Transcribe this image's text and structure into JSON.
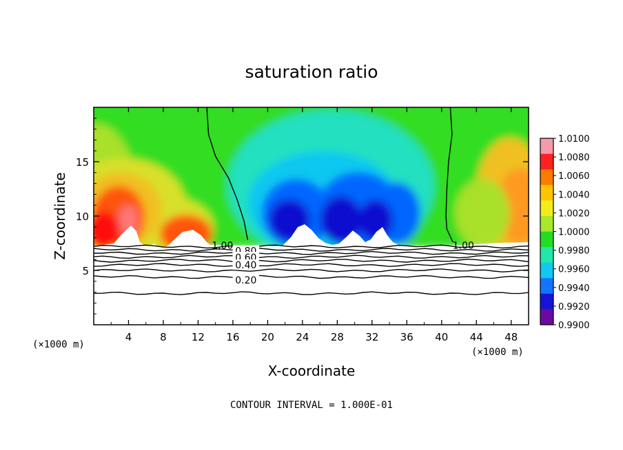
{
  "chart_data": {
    "type": "heatmap",
    "title": "saturation ratio",
    "xlabel": "X-coordinate",
    "ylabel": "Z-coordinate",
    "x_unit_left": "(×1000 m)",
    "x_unit_right": "(×1000 m)",
    "xlim": [
      0,
      50
    ],
    "ylim": [
      0,
      20
    ],
    "x_ticks": [
      "4",
      "8",
      "12",
      "16",
      "20",
      "24",
      "28",
      "32",
      "36",
      "40",
      "44",
      "48"
    ],
    "x_tick_values": [
      4,
      8,
      12,
      16,
      20,
      24,
      28,
      32,
      36,
      40,
      44,
      48
    ],
    "y_ticks": [
      "5",
      "10",
      "15"
    ],
    "y_tick_values": [
      5,
      10,
      15
    ],
    "colorbar": {
      "labels": [
        "1.0100",
        "1.0080",
        "1.0060",
        "1.0040",
        "1.0020",
        "1.0000",
        "0.9980",
        "0.9960",
        "0.9940",
        "0.9920",
        "0.9900"
      ],
      "min": 0.99,
      "max": 1.01
    },
    "contour_interval_text": "CONTOUR INTERVAL = 1.000E-01",
    "contour_labels": [
      {
        "text": "1.00",
        "x": 14.8,
        "z": 7.3
      },
      {
        "text": "0.80",
        "x": 17.5,
        "z": 6.8
      },
      {
        "text": "0.60",
        "x": 17.5,
        "z": 6.2
      },
      {
        "text": "0.40",
        "x": 17.5,
        "z": 5.5
      },
      {
        "text": "0.20",
        "x": 17.5,
        "z": 4.1
      },
      {
        "text": "1.00",
        "x": 42.5,
        "z": 7.3
      }
    ],
    "saturation_line_left": [
      [
        13.0,
        20
      ],
      [
        13.2,
        17.5
      ],
      [
        14.0,
        15.5
      ],
      [
        15.5,
        13.5
      ],
      [
        16.5,
        11.5
      ],
      [
        17.3,
        9.5
      ],
      [
        17.7,
        7.8
      ]
    ],
    "saturation_line_right": [
      [
        41.0,
        20
      ],
      [
        41.2,
        17.5
      ],
      [
        40.8,
        15.0
      ],
      [
        40.6,
        12.5
      ],
      [
        40.5,
        10.0
      ],
      [
        40.6,
        8.8
      ],
      [
        41.3,
        7.6
      ]
    ],
    "subsaturated_contours_z": [
      7.2,
      6.9,
      6.6,
      6.25,
      5.9,
      5.5,
      5.0,
      4.4,
      2.9
    ],
    "cloud_base_z": 7.3
  }
}
